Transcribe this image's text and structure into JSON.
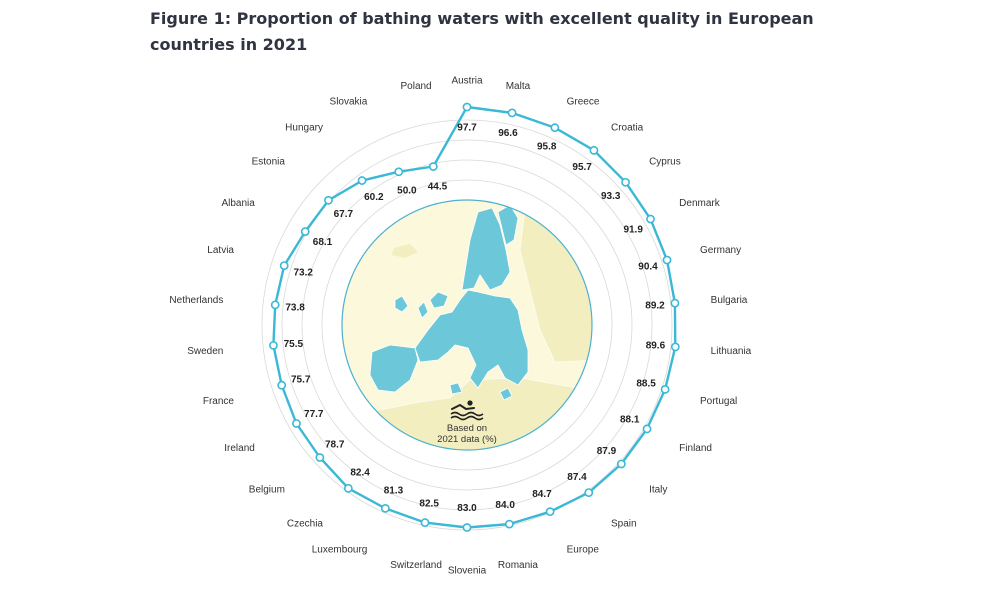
{
  "title_lines": [
    "Figure 1: Proportion of bathing waters with excellent quality in European",
    "countries in 2021"
  ],
  "center_note": {
    "line1": "Based on",
    "line2": "2021 data (%)"
  },
  "colors": {
    "line": "#3ab8d6",
    "marker_fill": "#ffffff",
    "grid": "#d9d9d9",
    "map_circle_border": "#4ab2cf",
    "map_sea": "#fbf8dc",
    "map_eu": "#6cc8d8",
    "text": "#333333"
  },
  "center_icon": "swimmer-icon",
  "chart_data": {
    "type": "radial-line",
    "title": "Figure 1: Proportion of bathing waters with excellent quality in European countries in 2021",
    "unit": "%",
    "categories": [
      "Austria",
      "Malta",
      "Greece",
      "Croatia",
      "Cyprus",
      "Denmark",
      "Germany",
      "Bulgaria",
      "Lithuania",
      "Portugal",
      "Finland",
      "Italy",
      "Spain",
      "Europe",
      "Romania",
      "Slovenia",
      "Switzerland",
      "Luxembourg",
      "Czechia",
      "Belgium",
      "Ireland",
      "France",
      "Sweden",
      "Netherlands",
      "Latvia",
      "Albania",
      "Estonia",
      "Hungary",
      "Slovakia",
      "Poland"
    ],
    "values": [
      97.7,
      96.6,
      95.8,
      95.7,
      93.3,
      91.9,
      90.4,
      89.2,
      89.6,
      88.5,
      88.1,
      87.9,
      87.4,
      84.7,
      84.0,
      83.0,
      82.5,
      81.3,
      82.4,
      78.7,
      77.7,
      75.7,
      75.5,
      73.8,
      73.2,
      68.1,
      67.7,
      60.2,
      50.0,
      44.5
    ],
    "value_labels": [
      "97.7",
      "96.6",
      "95.8",
      "95.7",
      "93.3",
      "91.9",
      "90.4",
      "89.2",
      "89.6",
      "88.5",
      "88.1",
      "87.9",
      "87.4",
      "84.7",
      "84.0",
      "83.0",
      "82.5",
      "81.3",
      "82.4",
      "78.7",
      "77.7",
      "75.7",
      "75.5",
      "73.8",
      "73.2",
      "68.1",
      "67.7",
      "60.2",
      "50.0",
      "44.5"
    ],
    "grid": true
  }
}
